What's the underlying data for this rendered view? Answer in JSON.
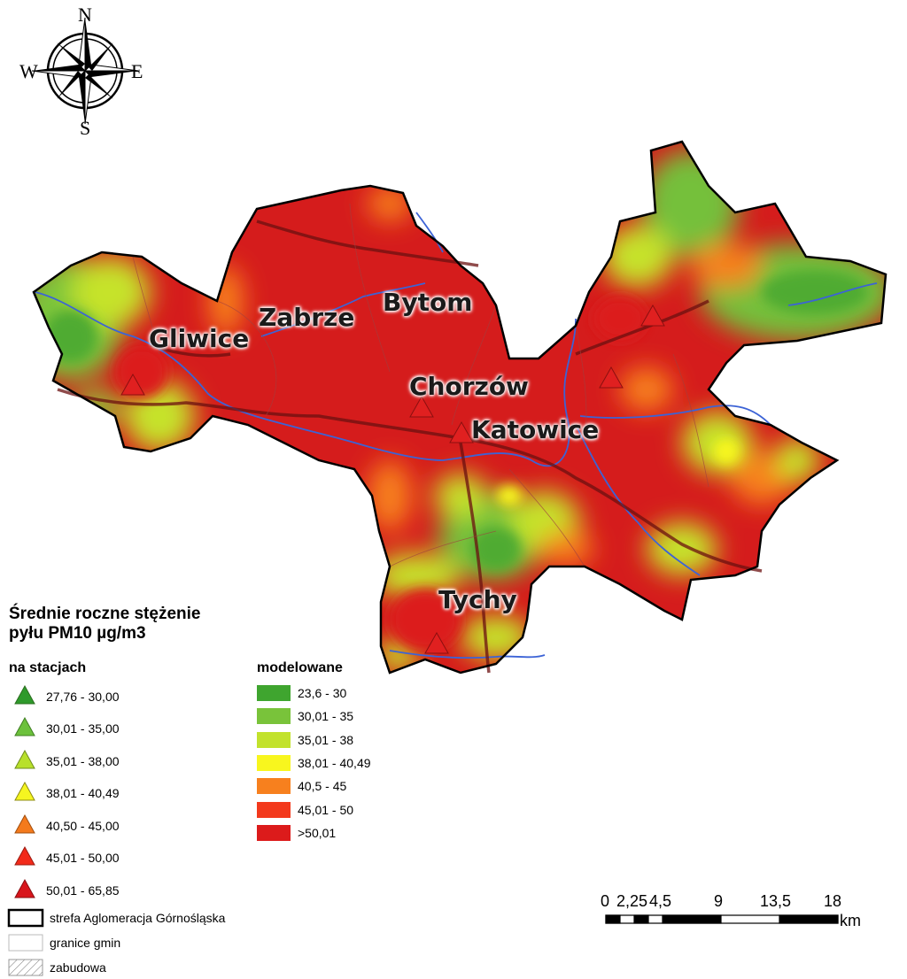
{
  "compass": {
    "north": "N",
    "south": "S",
    "east": "E",
    "west": "W"
  },
  "cities": [
    {
      "name": "Gliwice"
    },
    {
      "name": "Zabrze"
    },
    {
      "name": "Bytom"
    },
    {
      "name": "Chorzów"
    },
    {
      "name": "Katowice"
    },
    {
      "name": "Tychy"
    }
  ],
  "legend": {
    "title_line1": "Średnie roczne stężenie",
    "title_line2": "pyłu PM10 µg/m3",
    "stations_title": "na stacjach",
    "stations": [
      {
        "label": "27,76 - 30,00",
        "color": "#2e9a2b"
      },
      {
        "label": "30,01 - 35,00",
        "color": "#6cc13c"
      },
      {
        "label": "35,01 - 38,00",
        "color": "#b8e02b"
      },
      {
        "label": "38,01 - 40,49",
        "color": "#f5f520"
      },
      {
        "label": "40,50 - 45,00",
        "color": "#f47a1c"
      },
      {
        "label": "45,01 - 50,00",
        "color": "#f22a1a"
      },
      {
        "label": "50,01 - 65,85",
        "color": "#d8151b"
      }
    ],
    "modeled_title": "modelowane",
    "modeled": [
      {
        "label": "23,6 - 30",
        "color": "#3fa52f"
      },
      {
        "label": "30,01 - 35",
        "color": "#79c33a"
      },
      {
        "label": "35,01 - 38",
        "color": "#c2e22c"
      },
      {
        "label": "38,01 - 40,49",
        "color": "#f8f61e"
      },
      {
        "label": "40,5 - 45",
        "color": "#f7801e"
      },
      {
        "label": "45,01 - 50",
        "color": "#f3391c"
      },
      {
        "label": ">50,01",
        "color": "#dc1b1b"
      }
    ],
    "extras": [
      {
        "label": "strefa Aglomeracja Górnośląska",
        "kind": "zone-border"
      },
      {
        "label": "granice gmin",
        "kind": "municipal-border"
      },
      {
        "label": "zabudowa",
        "kind": "built-up-hatch"
      }
    ]
  },
  "scalebar": {
    "labels": [
      "0",
      "2,25",
      "4,5",
      "9",
      "13,5",
      "18"
    ],
    "unit": "km"
  }
}
